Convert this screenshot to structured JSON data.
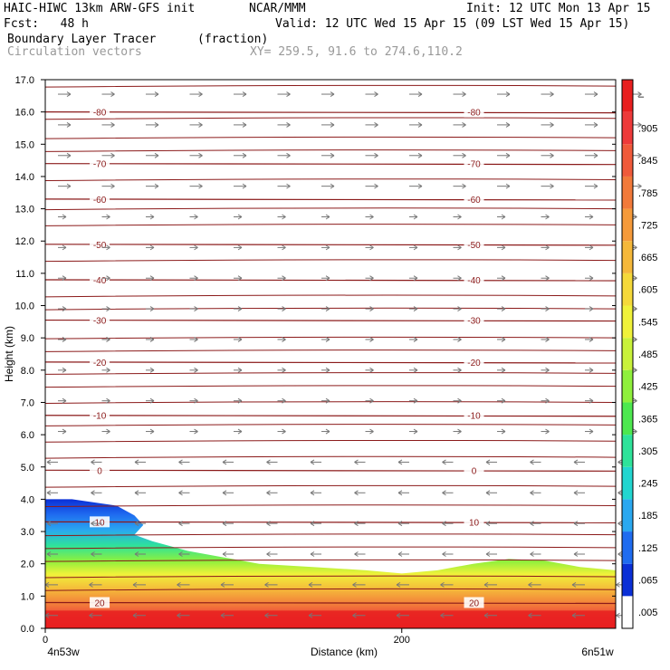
{
  "header": {
    "model": "HAIC-HIWC 13km ARW-GFS init",
    "org": "NCAR/MMM",
    "init": "Init: 12 UTC Mon 13 Apr 15",
    "fcst": "Fcst:   48 h",
    "valid": "Valid: 12 UTC Wed 15 Apr 15 (09 LST Wed 15 Apr 15)",
    "field": "Boundary Layer Tracer",
    "units": "(fraction)",
    "vectors": "Circulation vectors",
    "xy": "XY= 259.5, 91.6 to 274.6,110.2"
  },
  "chart_data": {
    "type": "heatmap",
    "xlabel": "Distance (km)",
    "ylabel": "Height (km)",
    "xlim": [
      0,
      320
    ],
    "ylim": [
      0,
      17
    ],
    "x_ticks": [
      0,
      200
    ],
    "y_ticks": [
      "0.0",
      "1.0",
      "2.0",
      "3.0",
      "4.0",
      "5.0",
      "6.0",
      "7.0",
      "8.0",
      "9.0",
      "10.0",
      "11.0",
      "12.0",
      "13.0",
      "14.0",
      "15.0",
      "16.0",
      "17.0"
    ],
    "x_endpoints": {
      "left": "4n53w",
      "right": "6n51w"
    },
    "tracer_top_km": [
      [
        0,
        4.0
      ],
      [
        15,
        4.0
      ],
      [
        40,
        3.8
      ],
      [
        50,
        3.5
      ],
      [
        55,
        3.2
      ],
      [
        50,
        2.9
      ],
      [
        60,
        2.7
      ],
      [
        80,
        2.4
      ],
      [
        100,
        2.2
      ],
      [
        120,
        2.0
      ],
      [
        150,
        1.9
      ],
      [
        180,
        1.8
      ],
      [
        200,
        1.7
      ],
      [
        220,
        1.8
      ],
      [
        240,
        2.0
      ],
      [
        260,
        2.15
      ],
      [
        280,
        2.1
      ],
      [
        300,
        1.9
      ],
      [
        320,
        1.8
      ]
    ],
    "colorbar": {
      "labels": [
        ".005",
        ".065",
        ".125",
        ".185",
        ".245",
        ".305",
        ".365",
        ".425",
        ".485",
        ".545",
        ".605",
        ".665",
        ".725",
        ".785",
        ".845",
        ".905",
        "–"
      ],
      "colors": [
        "#ffffff",
        "#0a2fd6",
        "#1f6cf0",
        "#2aa8f0",
        "#22d6d0",
        "#2ee39a",
        "#4de84f",
        "#8ff03c",
        "#c9f23a",
        "#f0f23a",
        "#f5d93a",
        "#f5b83a",
        "#f59a3a",
        "#f27a3a",
        "#f05a3a",
        "#ee3a3a",
        "#e81f1f"
      ]
    },
    "temperature_contours": [
      {
        "value": "-80",
        "height_km": 16.0
      },
      {
        "value": "-70",
        "height_km": 14.4
      },
      {
        "value": "-60",
        "height_km": 13.3
      },
      {
        "value": "-50",
        "height_km": 11.9
      },
      {
        "value": "-40",
        "height_km": 10.8
      },
      {
        "value": "-30",
        "height_km": 9.55
      },
      {
        "value": "-20",
        "height_km": 8.25
      },
      {
        "value": "-10",
        "height_km": 6.6
      },
      {
        "value": "0",
        "height_km": 4.9
      },
      {
        "value": "10",
        "height_km": 3.3
      },
      {
        "value": "20",
        "height_km": 0.8
      }
    ],
    "extra_contour_heights_km": [
      16.8,
      15.8,
      15.2,
      14.8,
      13.9,
      13.0,
      12.5,
      11.4,
      10.3,
      9.9,
      9.0,
      8.6,
      7.9,
      7.5,
      7.0,
      6.3,
      5.8,
      5.3,
      4.4,
      3.8,
      2.9,
      2.5,
      2.1,
      1.6,
      1.2
    ],
    "grid": false,
    "legend": "colorbar-right"
  },
  "colors": {
    "contour": "#8b1a1a",
    "vector": "#777777"
  }
}
